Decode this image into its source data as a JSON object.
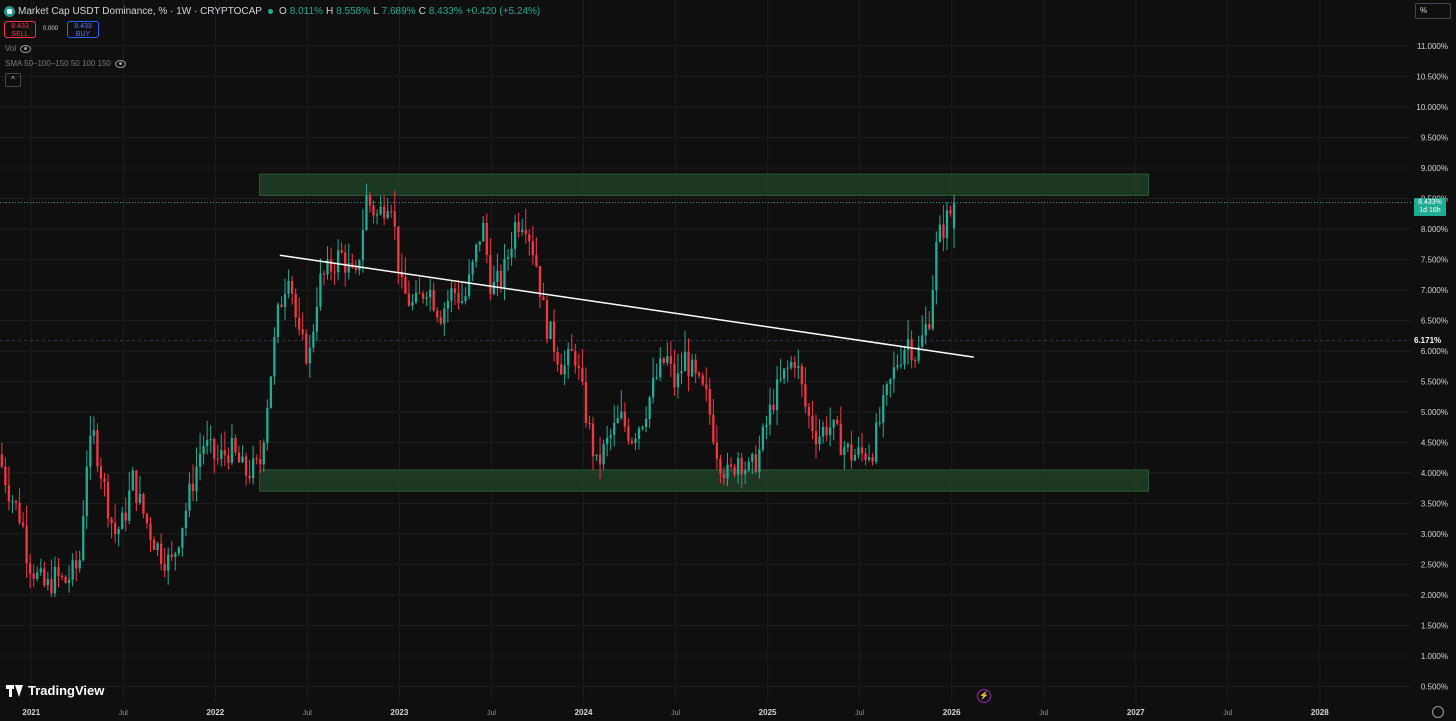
{
  "header": {
    "title": "Market Cap USDT Dominance, % · 1W · CRYPTOCAP",
    "ohlc": [
      {
        "k": "O",
        "v": "8.011%"
      },
      {
        "k": "H",
        "v": "8.558%"
      },
      {
        "k": "L",
        "v": "7.689%"
      },
      {
        "k": "C",
        "v": "8.433%"
      },
      {
        "k": "",
        "v": "+0.420 (+5.24%)"
      }
    ]
  },
  "trade": {
    "sell_price": "8.433",
    "sell_label": "SELL",
    "spread": "0.000",
    "buy_price": "8.433",
    "buy_label": "BUY"
  },
  "indicators": {
    "vol": "Vol",
    "sma": "SMA 50–100–150 50 100 150"
  },
  "scale_mode": "%",
  "last_price": {
    "value": "8.433%",
    "countdown": "1d 16h"
  },
  "crosshair_price": "6.171%",
  "branding": "TradingView",
  "colors": {
    "up": "#22ab94",
    "down": "#f23645",
    "zone": "#1f3b24",
    "trendline": "#ffffff",
    "background": "#0f0f0f",
    "grid": "#1c1c1c"
  },
  "chart_data": {
    "type": "candlestick",
    "title": "Market Cap USDT Dominance, %",
    "interval": "1W",
    "y_axis": {
      "ticks": [
        "11.000%",
        "10.500%",
        "10.000%",
        "9.500%",
        "9.000%",
        "8.500%",
        "8.000%",
        "7.500%",
        "7.000%",
        "6.500%",
        "6.000%",
        "5.500%",
        "5.000%",
        "4.500%",
        "4.000%",
        "3.500%",
        "3.000%",
        "2.500%",
        "2.000%",
        "1.500%",
        "1.000%",
        "0.500%"
      ],
      "tick_values": [
        11,
        10.5,
        10,
        9.5,
        9,
        8.5,
        8,
        7.5,
        7,
        6.5,
        6,
        5.5,
        5,
        4.5,
        4,
        3.5,
        3,
        2.5,
        2,
        1.5,
        1,
        0.5
      ],
      "ylim": [
        0.3,
        11.6
      ],
      "position": "right"
    },
    "x_axis": {
      "labels": [
        "2021",
        "Jul",
        "2022",
        "Jul",
        "2023",
        "Jul",
        "2024",
        "Jul",
        "2025",
        "Jul",
        "2026",
        "Jul",
        "2027",
        "Jul",
        "2028"
      ],
      "label_times": [
        2021.0,
        2021.5,
        2022.0,
        2022.5,
        2023.0,
        2023.5,
        2024.0,
        2024.5,
        2025.0,
        2025.5,
        2026.0,
        2026.5,
        2027.0,
        2027.5,
        2028.0
      ],
      "xlim": [
        2020.83,
        2028.74
      ]
    },
    "closes_anchor": [
      [
        2020.84,
        4.3
      ],
      [
        2020.9,
        3.7
      ],
      [
        2020.97,
        3.2
      ],
      [
        2021.0,
        2.6
      ],
      [
        2021.05,
        2.3
      ],
      [
        2021.1,
        2.1
      ],
      [
        2021.15,
        2.3
      ],
      [
        2021.2,
        2.2
      ],
      [
        2021.28,
        2.5
      ],
      [
        2021.32,
        4.2
      ],
      [
        2021.36,
        4.6
      ],
      [
        2021.42,
        3.7
      ],
      [
        2021.47,
        3.0
      ],
      [
        2021.52,
        3.2
      ],
      [
        2021.57,
        3.9
      ],
      [
        2021.62,
        3.4
      ],
      [
        2021.67,
        3.0
      ],
      [
        2021.72,
        2.7
      ],
      [
        2021.78,
        2.5
      ],
      [
        2021.85,
        3.3
      ],
      [
        2021.9,
        3.9
      ],
      [
        2021.95,
        4.5
      ],
      [
        2022.03,
        4.2
      ],
      [
        2022.1,
        4.4
      ],
      [
        2022.18,
        4.0
      ],
      [
        2022.26,
        4.1
      ],
      [
        2022.31,
        5.4
      ],
      [
        2022.36,
        6.6
      ],
      [
        2022.42,
        7.4
      ],
      [
        2022.47,
        6.2
      ],
      [
        2022.53,
        5.9
      ],
      [
        2022.58,
        7.1
      ],
      [
        2022.63,
        7.3
      ],
      [
        2022.7,
        7.6
      ],
      [
        2022.78,
        7.1
      ],
      [
        2022.84,
        8.5
      ],
      [
        2022.9,
        8.2
      ],
      [
        2022.97,
        8.6
      ],
      [
        2023.03,
        7.0
      ],
      [
        2023.1,
        6.7
      ],
      [
        2023.17,
        7.1
      ],
      [
        2023.24,
        6.6
      ],
      [
        2023.31,
        7.0
      ],
      [
        2023.37,
        6.8
      ],
      [
        2023.42,
        7.4
      ],
      [
        2023.47,
        8.1
      ],
      [
        2023.52,
        7.0
      ],
      [
        2023.58,
        7.2
      ],
      [
        2023.65,
        8.1
      ],
      [
        2023.7,
        8.2
      ],
      [
        2023.76,
        7.5
      ],
      [
        2023.81,
        6.5
      ],
      [
        2023.86,
        6.1
      ],
      [
        2023.91,
        5.7
      ],
      [
        2023.97,
        6.0
      ],
      [
        2024.03,
        5.0
      ],
      [
        2024.09,
        4.1
      ],
      [
        2024.15,
        4.5
      ],
      [
        2024.22,
        4.9
      ],
      [
        2024.28,
        4.6
      ],
      [
        2024.34,
        4.9
      ],
      [
        2024.42,
        5.6
      ],
      [
        2024.47,
        5.9
      ],
      [
        2024.52,
        5.4
      ],
      [
        2024.57,
        5.9
      ],
      [
        2024.63,
        5.5
      ],
      [
        2024.69,
        5.2
      ],
      [
        2024.75,
        4.3
      ],
      [
        2024.81,
        3.9
      ],
      [
        2024.86,
        4.3
      ],
      [
        2024.92,
        4.0
      ],
      [
        2024.97,
        4.3
      ],
      [
        2025.05,
        5.2
      ],
      [
        2025.11,
        5.6
      ],
      [
        2025.17,
        5.9
      ],
      [
        2025.23,
        5.0
      ],
      [
        2025.29,
        4.6
      ],
      [
        2025.35,
        4.8
      ],
      [
        2025.42,
        4.5
      ],
      [
        2025.47,
        4.3
      ],
      [
        2025.53,
        4.3
      ],
      [
        2025.59,
        4.4
      ],
      [
        2025.66,
        5.2
      ],
      [
        2025.72,
        5.8
      ],
      [
        2025.78,
        6.2
      ],
      [
        2025.83,
        5.9
      ],
      [
        2025.9,
        6.6
      ],
      [
        2025.94,
        7.8
      ],
      [
        2025.97,
        8.0
      ],
      [
        2026.0,
        8.2
      ],
      [
        2026.04,
        8.433
      ]
    ],
    "last": {
      "open": 8.011,
      "high": 8.558,
      "low": 7.689,
      "close": 8.433
    },
    "resistance_zone": {
      "from": 8.55,
      "to": 8.9,
      "x_start": 2022.24,
      "x_end": 2027.07
    },
    "support_zone": {
      "from": 3.7,
      "to": 4.05,
      "x_start": 2022.24,
      "x_end": 2027.07
    },
    "trendline": {
      "x": [
        2022.35,
        2026.12
      ],
      "y": [
        7.57,
        5.9
      ]
    },
    "last_price_line": 8.433,
    "crosshair_price_line": 6.171
  }
}
